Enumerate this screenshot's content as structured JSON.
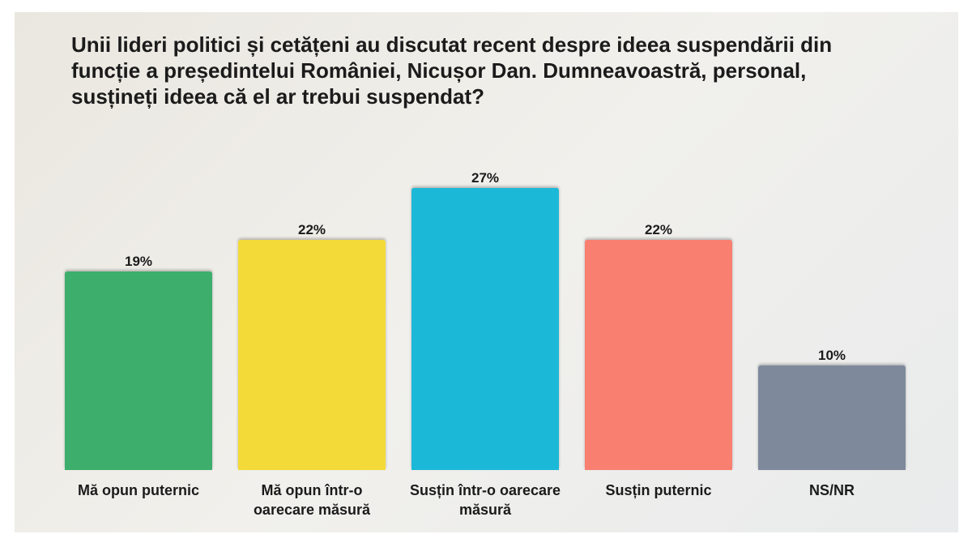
{
  "chart_data": {
    "type": "bar",
    "title": "Unii lideri politici și cetățeni au discutat recent despre ideea suspendării din funcție a președintelui României, Nicușor Dan. Dumneavoastră, personal, susțineți ideea că el ar trebui suspendat?",
    "categories": [
      "Mă opun puternic",
      "Mă opun într-o oarecare măsură",
      "Susțin într-o oarecare măsură",
      "Susțin puternic",
      "NS/NR"
    ],
    "values": [
      19,
      22,
      27,
      22,
      10
    ],
    "value_labels": [
      "19%",
      "22%",
      "27%",
      "22%",
      "10%"
    ],
    "colors": [
      "#3dae6c",
      "#f4da38",
      "#1cb8d8",
      "#f97f71",
      "#7e899c"
    ]
  }
}
